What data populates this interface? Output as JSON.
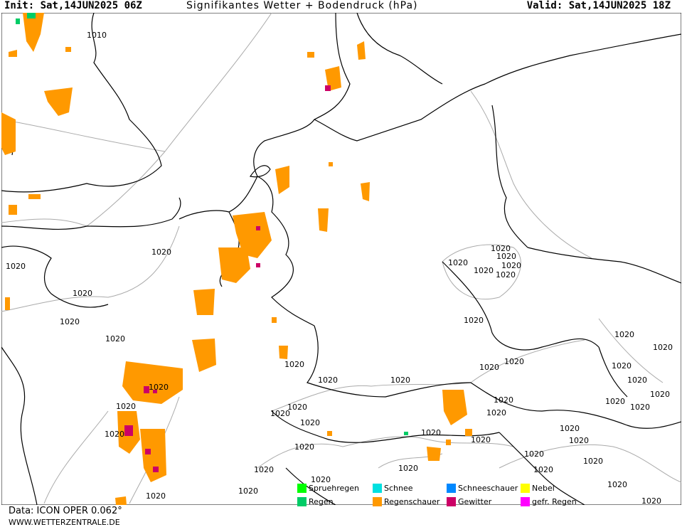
{
  "header": {
    "init": "Init: Sat,14JUN2025 06Z",
    "title": "Signifikantes Wetter + Bodendruck (hPa)",
    "valid": "Valid: Sat,14JUN2025 18Z"
  },
  "isobar_labels": [
    "1010",
    "1020"
  ],
  "legend": [
    {
      "label": "Spruehregen",
      "color": "#00ff00"
    },
    {
      "label": "Regen",
      "color": "#00cc66"
    },
    {
      "label": "Schnee",
      "color": "#00e0e0"
    },
    {
      "label": "Regenschauer",
      "color": "#ff9900"
    },
    {
      "label": "Schneeschauer",
      "color": "#0088ff"
    },
    {
      "label": "Gewitter",
      "color": "#cc0066"
    },
    {
      "label": "Nebel",
      "color": "#ffff00"
    },
    {
      "label": "gefr. Regen",
      "color": "#ff00ff"
    }
  ],
  "footer": {
    "data_source": "Data: ICON OPER 0.062°",
    "site": "WWW.WETTERZENTRALE.DE"
  },
  "colors": {
    "shower": "#ff9900",
    "thunder": "#cc0066",
    "rain": "#00cc66",
    "border": "#000000",
    "isobar": "#aaaaaa"
  }
}
